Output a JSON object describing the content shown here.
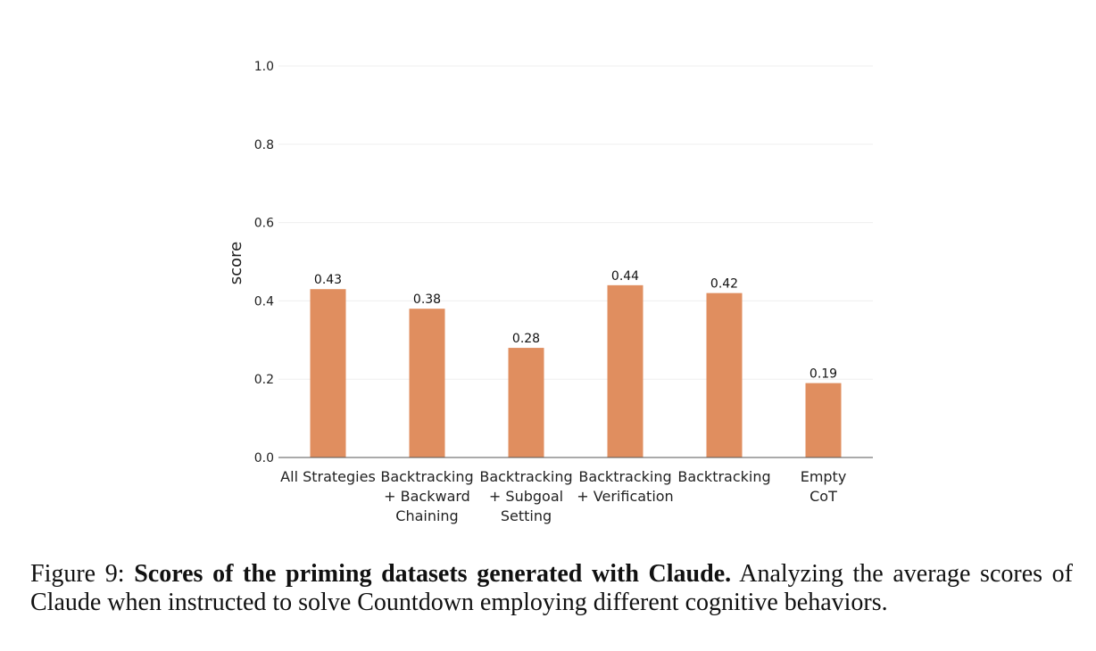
{
  "chart_data": {
    "type": "bar",
    "categories": [
      [
        "All Strategies"
      ],
      [
        "Backtracking",
        "+ Backward",
        "Chaining"
      ],
      [
        "Backtracking",
        "+ Subgoal",
        "Setting"
      ],
      [
        "Backtracking",
        "+ Verification"
      ],
      [
        "Backtracking"
      ],
      [
        "Empty",
        "CoT"
      ]
    ],
    "values": [
      0.43,
      0.38,
      0.28,
      0.44,
      0.42,
      0.19
    ],
    "data_labels": [
      "0.43",
      "0.38",
      "0.28",
      "0.44",
      "0.42",
      "0.19"
    ],
    "ylabel": "score",
    "ylim": [
      0,
      1.0
    ],
    "yticks": [
      "0.0",
      "0.2",
      "0.4",
      "0.6",
      "0.8",
      "1.0"
    ],
    "grid": true,
    "bar_color": "#e08e5f"
  },
  "caption": {
    "label": "Figure 9:",
    "bold": "Scores of the priming datasets generated with Claude.",
    "text": "Analyzing the average scores of Claude when instructed to solve Countdown employing different cognitive behaviors."
  }
}
